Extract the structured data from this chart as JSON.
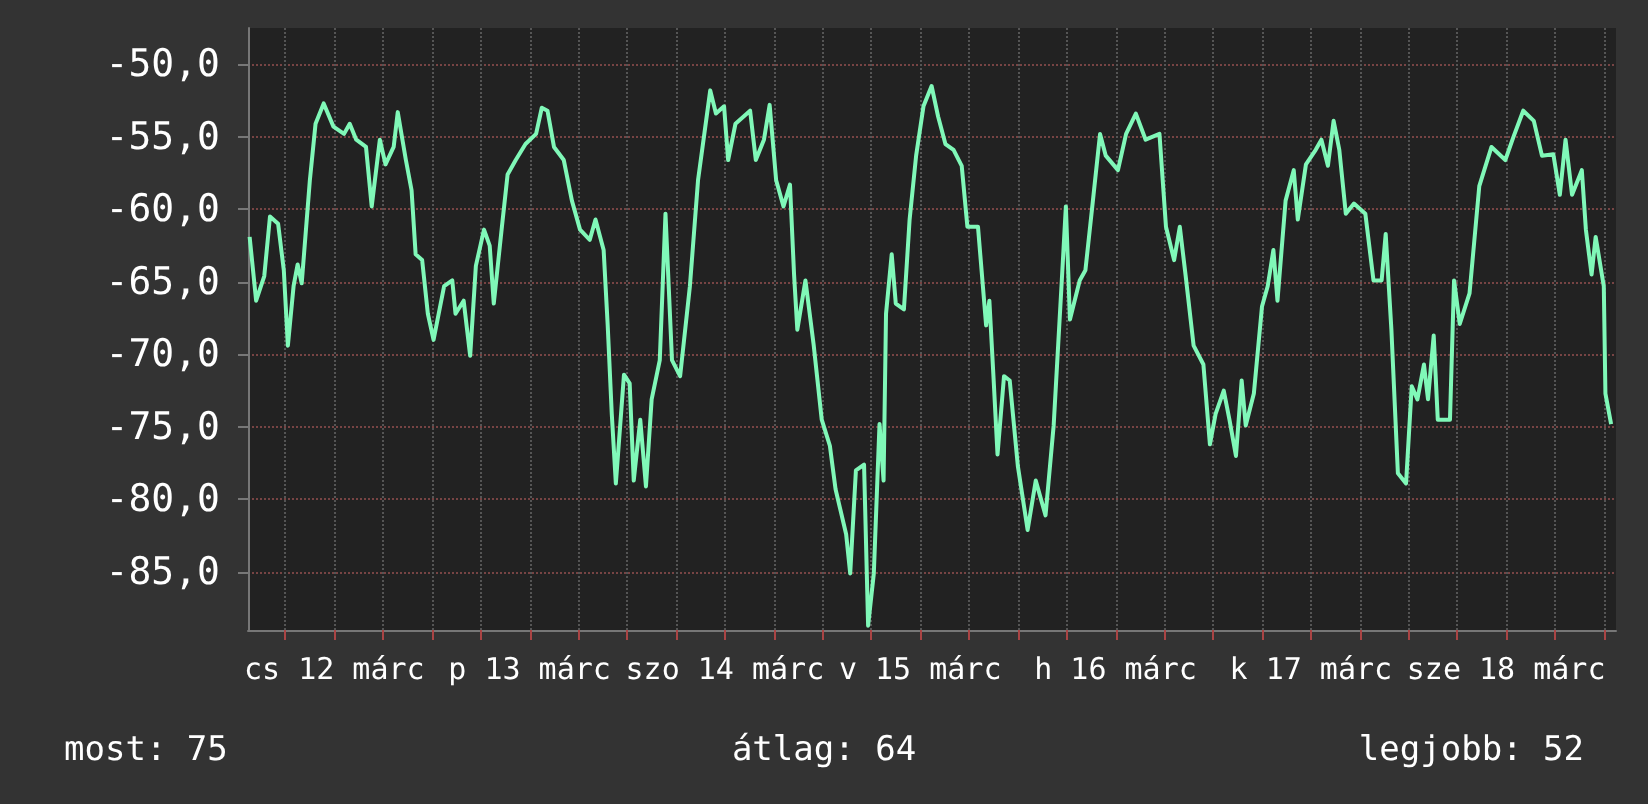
{
  "chart_data": {
    "type": "line",
    "x": [
      "--03-12T01:36",
      "--03-12T02:24",
      "--03-12T03:24",
      "--03-12T04:06",
      "--03-12T05:06",
      "--03-12T05:48",
      "--03-12T06:18",
      "--03-12T07:00",
      "--03-12T07:30",
      "--03-12T08:00",
      "--03-12T09:00",
      "--03-12T09:42",
      "--03-12T10:42",
      "--03-12T11:54",
      "--03-12T13:12",
      "--03-12T13:54",
      "--03-12T14:42",
      "--03-12T15:54",
      "--03-12T16:36",
      "--03-12T17:36",
      "--03-12T18:18",
      "--03-12T19:18",
      "--03-12T19:48",
      "--03-12T20:48",
      "--03-12T21:30",
      "--03-12T22:00",
      "--03-12T22:48",
      "--03-12T23:30",
      "--03-13T00:12",
      "--03-13T01:30",
      "--03-13T02:30",
      "--03-13T02:54",
      "--03-13T03:54",
      "--03-13T04:42",
      "--03-13T05:24",
      "--03-13T06:24",
      "--03-13T07:06",
      "--03-13T07:36",
      "--03-13T08:36",
      "--03-13T09:18",
      "--03-13T10:18",
      "--03-13T11:30",
      "--03-13T12:48",
      "--03-13T13:30",
      "--03-13T14:12",
      "--03-13T15:00",
      "--03-13T16:12",
      "--03-13T17:12",
      "--03-13T18:12",
      "--03-13T19:24",
      "--03-13T20:06",
      "--03-13T21:06",
      "--03-13T21:36",
      "--03-13T22:06",
      "--03-13T22:36",
      "--03-13T23:36",
      "--03-14T00:18",
      "--03-14T00:48",
      "--03-14T01:36",
      "--03-14T02:18",
      "--03-14T03:00",
      "--03-14T04:00",
      "--03-14T04:42",
      "--03-14T05:30",
      "--03-14T06:30",
      "--03-14T07:42",
      "--03-14T08:42",
      "--03-14T10:12",
      "--03-14T10:54",
      "--03-14T11:54",
      "--03-14T12:24",
      "--03-14T13:18",
      "--03-14T15:06",
      "--03-14T15:48",
      "--03-14T16:48",
      "--03-14T17:30",
      "--03-14T18:18",
      "--03-14T19:12",
      "--03-14T20:00",
      "--03-14T20:30",
      "--03-14T20:54",
      "--03-14T21:54",
      "--03-14T22:54",
      "--03-14T23:54",
      "--03-15T00:54",
      "--03-15T01:36",
      "--03-15T02:54",
      "--03-15T03:24",
      "--03-15T04:06",
      "--03-15T05:06",
      "--03-15T05:36",
      "--03-15T06:18",
      "--03-15T07:00",
      "--03-15T07:30",
      "--03-15T07:48",
      "--03-15T08:30",
      "--03-15T09:00",
      "--03-15T10:00",
      "--03-15T10:42",
      "--03-15T11:30",
      "--03-15T12:24",
      "--03-15T13:24",
      "--03-15T14:12",
      "--03-15T15:06",
      "--03-15T16:06",
      "--03-15T17:06",
      "--03-15T17:48",
      "--03-15T19:06",
      "--03-15T20:06",
      "--03-15T20:30",
      "--03-15T21:00",
      "--03-15T21:30",
      "--03-15T22:18",
      "--03-15T23:00",
      "--03-16T00:00",
      "--03-16T01:12",
      "--03-16T02:12",
      "--03-16T03:24",
      "--03-16T04:24",
      "--03-16T05:24",
      "--03-16T05:54",
      "--03-16T06:24",
      "--03-16T07:36",
      "--03-16T08:18",
      "--03-16T09:18",
      "--03-16T10:06",
      "--03-16T10:48",
      "--03-16T12:18",
      "--03-16T13:18",
      "--03-16T14:30",
      "--03-16T15:42",
      "--03-16T17:24",
      "--03-16T18:12",
      "--03-16T19:12",
      "--03-16T19:54",
      "--03-16T20:36",
      "--03-16T21:36",
      "--03-16T22:48",
      "--03-16T23:36",
      "--03-17T00:18",
      "--03-17T01:18",
      "--03-17T02:00",
      "--03-17T02:48",
      "--03-17T03:30",
      "--03-17T04:00",
      "--03-17T05:00",
      "--03-17T06:00",
      "--03-17T06:42",
      "--03-17T07:24",
      "--03-17T07:54",
      "--03-17T08:54",
      "--03-17T09:54",
      "--03-17T10:24",
      "--03-17T11:24",
      "--03-17T12:36",
      "--03-17T13:18",
      "--03-17T14:06",
      "--03-17T14:48",
      "--03-17T15:30",
      "--03-17T16:18",
      "--03-17T17:18",
      "--03-17T18:42",
      "--03-17T19:42",
      "--03-17T20:42",
      "--03-17T21:12",
      "--03-17T21:54",
      "--03-17T22:42",
      "--03-17T23:42",
      "--03-18T00:24",
      "--03-18T01:06",
      "--03-18T01:54",
      "--03-18T02:24",
      "--03-18T03:06",
      "--03-18T03:36",
      "--03-18T05:06",
      "--03-18T05:36",
      "--03-18T06:18",
      "--03-18T07:30",
      "--03-18T08:42",
      "--03-18T10:12",
      "--03-18T11:54",
      "--03-18T12:54",
      "--03-18T14:06",
      "--03-18T15:24",
      "--03-18T16:24",
      "--03-18T17:48",
      "--03-18T18:36",
      "--03-18T19:18",
      "--03-18T20:06",
      "--03-18T21:18",
      "--03-18T21:48",
      "--03-18T22:30",
      "--03-18T23:00",
      "--03-19T00:00",
      "--03-19T00:12",
      "--03-19T00:54"
    ],
    "series": [
      {
        "color": "#80f8b8",
        "values": [
          -61.9,
          -66.3,
          -64.6,
          -60.5,
          -61,
          -64.2,
          -69.4,
          -65.3,
          -63.8,
          -65.1,
          -58,
          -54.1,
          -52.7,
          -54.3,
          -54.8,
          -54.1,
          -55.2,
          -55.7,
          -59.8,
          -55.2,
          -56.9,
          -55.7,
          -53.3,
          -56.6,
          -58.7,
          -63.1,
          -63.5,
          -67.2,
          -69,
          -65.3,
          -64.9,
          -67.2,
          -66.3,
          -70.1,
          -63.9,
          -61.4,
          -62.5,
          -66.5,
          -61.2,
          -57.6,
          -56.6,
          -55.5,
          -54.8,
          -53,
          -53.2,
          -55.7,
          -56.6,
          -59.4,
          -61.4,
          -62.1,
          -60.7,
          -62.8,
          -68,
          -74.1,
          -78.9,
          -71.4,
          -72,
          -78.7,
          -74.5,
          -79.1,
          -73.1,
          -70.4,
          -60.3,
          -70.4,
          -71.5,
          -65.3,
          -58,
          -51.8,
          -53.4,
          -52.9,
          -56.6,
          -54.1,
          -53.2,
          -56.6,
          -55.2,
          -52.8,
          -58,
          -59.8,
          -58.3,
          -64.5,
          -68.3,
          -64.9,
          -69.3,
          -74.5,
          -76.3,
          -79.3,
          -82.4,
          -85.1,
          -78,
          -77.6,
          -88.7,
          -85.1,
          -74.8,
          -78.7,
          -67.2,
          -63.1,
          -66.5,
          -66.9,
          -60.7,
          -56.3,
          -52.9,
          -51.5,
          -53.6,
          -55.5,
          -55.9,
          -57,
          -61.2,
          -61.2,
          -68,
          -66.3,
          -71.5,
          -76.9,
          -71.5,
          -71.8,
          -77.7,
          -82.1,
          -78.7,
          -81.1,
          -74.9,
          -64.9,
          -59.8,
          -67.6,
          -64.9,
          -64.2,
          -59,
          -54.8,
          -56.3,
          -57.3,
          -54.8,
          -53.4,
          -55.2,
          -54.8,
          -61.2,
          -63.5,
          -61.2,
          -64.5,
          -69.4,
          -70.7,
          -76.2,
          -74.1,
          -72.5,
          -74.5,
          -77,
          -71.8,
          -74.9,
          -72.7,
          -66.7,
          -65.3,
          -62.8,
          -66.3,
          -59.4,
          -57.3,
          -60.7,
          -56.9,
          -55.9,
          -55.2,
          -57,
          -53.9,
          -55.9,
          -60.3,
          -59.6,
          -60.3,
          -64.9,
          -64.9,
          -61.7,
          -68.3,
          -78.2,
          -78.9,
          -72.2,
          -73.1,
          -70.7,
          -73.1,
          -68.7,
          -74.5,
          -74.5,
          -64.9,
          -67.9,
          -65.8,
          -58.4,
          -55.7,
          -56.6,
          -55,
          -53.2,
          -53.9,
          -56.3,
          -56.2,
          -59,
          -55.2,
          -59,
          -57.3,
          -61.4,
          -64.5,
          -61.9,
          -65.3,
          -72.7,
          -74.8
        ]
      }
    ],
    "xlim": [
      "--03-12T01:24",
      "--03-19T01:30"
    ],
    "xticks": [
      {
        "value": "--03-12T06:00",
        "label": null
      },
      {
        "value": "--03-12T12:00",
        "label": "cs 12 márc"
      },
      {
        "value": "--03-12T18:00",
        "label": null
      },
      {
        "value": "--03-13T00:00",
        "label": null
      },
      {
        "value": "--03-13T06:00",
        "label": null
      },
      {
        "value": "--03-13T12:00",
        "label": "p 13 márc"
      },
      {
        "value": "--03-13T18:00",
        "label": null
      },
      {
        "value": "--03-14T00:00",
        "label": null
      },
      {
        "value": "--03-14T06:00",
        "label": null
      },
      {
        "value": "--03-14T12:00",
        "label": "szo 14 márc"
      },
      {
        "value": "--03-14T18:00",
        "label": null
      },
      {
        "value": "--03-15T00:00",
        "label": null
      },
      {
        "value": "--03-15T06:00",
        "label": null
      },
      {
        "value": "--03-15T12:00",
        "label": "v 15 márc"
      },
      {
        "value": "--03-15T18:00",
        "label": null
      },
      {
        "value": "--03-16T00:00",
        "label": null
      },
      {
        "value": "--03-16T06:00",
        "label": null
      },
      {
        "value": "--03-16T12:00",
        "label": "h 16 márc"
      },
      {
        "value": "--03-16T18:00",
        "label": null
      },
      {
        "value": "--03-17T00:00",
        "label": null
      },
      {
        "value": "--03-17T06:00",
        "label": null
      },
      {
        "value": "--03-17T12:00",
        "label": "k 17 márc"
      },
      {
        "value": "--03-17T18:00",
        "label": null
      },
      {
        "value": "--03-18T00:00",
        "label": null
      },
      {
        "value": "--03-18T06:00",
        "label": null
      },
      {
        "value": "--03-18T12:00",
        "label": "sze 18 márc"
      },
      {
        "value": "--03-18T18:00",
        "label": null
      },
      {
        "value": "--03-19T00:00",
        "label": null
      }
    ],
    "ylim": [
      -89,
      -47.5
    ],
    "yticks": [
      {
        "value": -85,
        "label": "-85,0"
      },
      {
        "value": -80,
        "label": "-80,0"
      },
      {
        "value": -75,
        "label": "-75,0"
      },
      {
        "value": -70,
        "label": "-70,0"
      },
      {
        "value": -65,
        "label": "-65,0"
      },
      {
        "value": -60,
        "label": "-60,0"
      },
      {
        "value": -55,
        "label": "-55,0"
      },
      {
        "value": -50,
        "label": "-50,0"
      }
    ],
    "grid": true,
    "marker": "none",
    "line_style": "solid",
    "annotations": [
      "most: 75",
      "átlag: 64",
      "legjobb: 52"
    ]
  }
}
